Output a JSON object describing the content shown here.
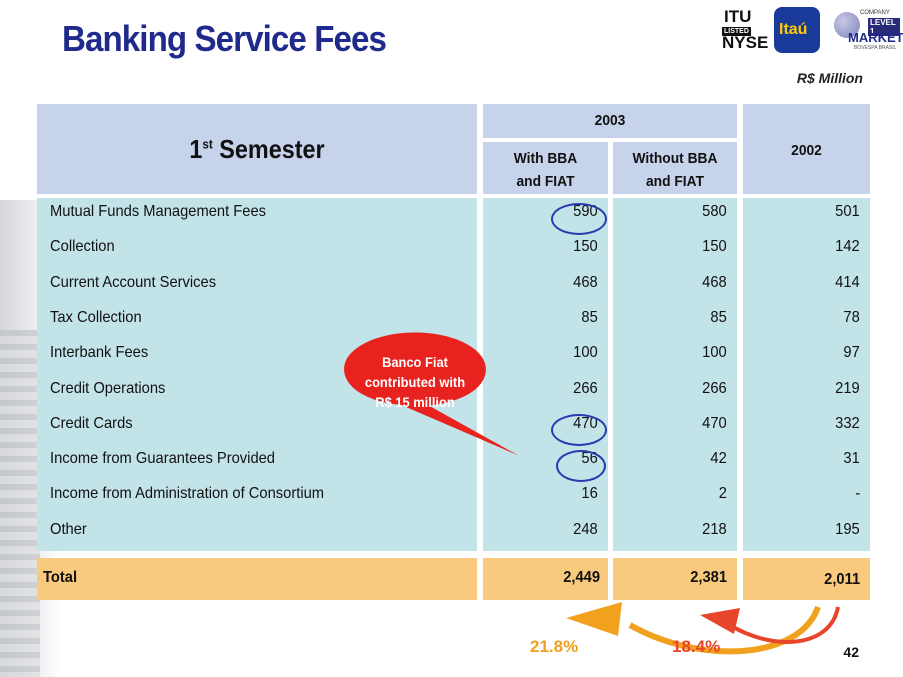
{
  "title": "Banking Service Fees",
  "unit": "R$ Million",
  "logos": {
    "nyse_top": "ITU",
    "nyse_listed": "LISTED",
    "nyse_bottom": "NYSE",
    "itau": "Itaú",
    "company": "COMPANY",
    "level": "LEVEL 1",
    "market": "MARKET",
    "bovespa": "BOVESPA BRASIL"
  },
  "header": {
    "semester_num": "1",
    "semester_sup": "st",
    "semester_word": "Semester",
    "year_2003": "2003",
    "col_with": "With BBA and FIAT",
    "col_with_l1": "With BBA",
    "col_with_l2": "and FIAT",
    "col_without_l1": "Without BBA",
    "col_without_l2": "and FIAT",
    "year_2002": "2002"
  },
  "rows": [
    {
      "label": "Mutual Funds Management Fees",
      "with": "590",
      "without": "580",
      "y2002": "501"
    },
    {
      "label": "Collection",
      "with": "150",
      "without": "150",
      "y2002": "142"
    },
    {
      "label": "Current Account Services",
      "with": "468",
      "without": "468",
      "y2002": "414"
    },
    {
      "label": "Tax Collection",
      "with": "85",
      "without": "85",
      "y2002": "78"
    },
    {
      "label": "Interbank Fees",
      "with": "100",
      "without": "100",
      "y2002": "97"
    },
    {
      "label": "Credit Operations",
      "with": "266",
      "without": "266",
      "y2002": "219"
    },
    {
      "label": "Credit Cards",
      "with": "470",
      "without": "470",
      "y2002": "332"
    },
    {
      "label": "Income from Guarantees Provided",
      "with": "56",
      "without": "42",
      "y2002": "31"
    },
    {
      "label": "Income from Administration of Consortium",
      "with": "16",
      "without": "2",
      "y2002": "-"
    },
    {
      "label": "Other",
      "with": "248",
      "without": "218",
      "y2002": "195"
    }
  ],
  "total": {
    "label": "Total",
    "with": "2,449",
    "without": "2,381",
    "y2002": "2,011"
  },
  "bubble": {
    "line1": "Banco Fiat",
    "line2": "contributed with",
    "line3": "R$ 15 million"
  },
  "growth": {
    "with_pct": "21.8%",
    "without_pct": "18.4%"
  },
  "page_number": "42",
  "colors": {
    "title": "#1f2a8c",
    "header": "#c6d3ea",
    "body": "#c2e4e9",
    "total": "#f9c97e",
    "bubble": "#e8231f",
    "arrow_orange": "#f2a11f",
    "arrow_red": "#e8452a",
    "pct_orange": "#f0a020",
    "pct_red": "#e8452a"
  }
}
